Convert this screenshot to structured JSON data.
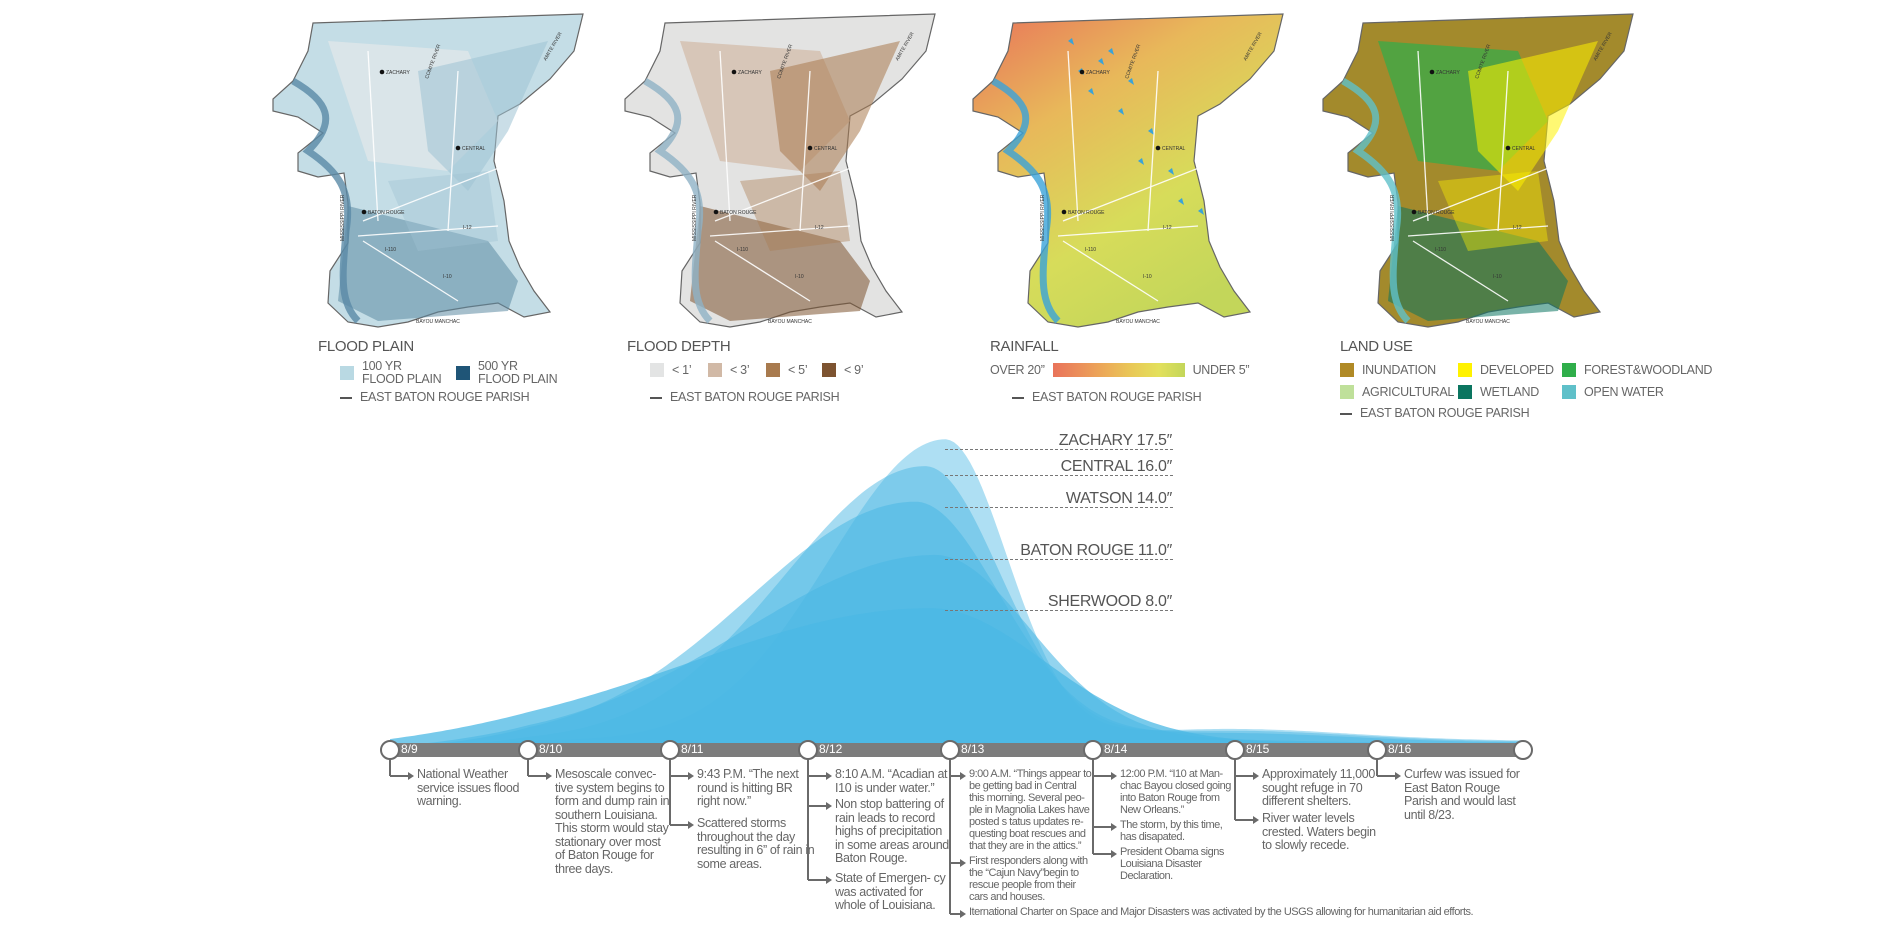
{
  "maps": [
    {
      "title": "FLOOD PLAIN",
      "legend": [
        {
          "label_line1": "100 YR",
          "label_line2": "FLOOD PLAIN",
          "color": "#b9d9e3"
        },
        {
          "label_line1": "500 YR",
          "label_line2": "FLOOD PLAIN",
          "color": "#1f5577"
        }
      ],
      "boundary_label": "EAST BATON ROUGE PARISH"
    },
    {
      "title": "FLOOD DEPTH",
      "legend": [
        {
          "label": "< 1’",
          "color": "#e3e4e4"
        },
        {
          "label": "< 3’",
          "color": "#d1b9a6"
        },
        {
          "label": "< 5’",
          "color": "#a87a4e"
        },
        {
          "label": "< 9’",
          "color": "#7d5330"
        }
      ],
      "boundary_label": "EAST BATON ROUGE PARISH"
    },
    {
      "title": "RAINFALL",
      "scale_high": "OVER 20”",
      "scale_low": "UNDER 5”",
      "scale_colors": [
        "#e9735a",
        "#eb8f5a",
        "#ecac58",
        "#e9c957",
        "#e3e05c",
        "#c3d65a"
      ],
      "boundary_label": "EAST BATON ROUGE PARISH"
    },
    {
      "title": "LAND USE",
      "legend": [
        {
          "label": "INUNDATION",
          "color": "#b08a26"
        },
        {
          "label": "DEVELOPED",
          "color": "#fff200"
        },
        {
          "label": "FOREST&WOODLAND",
          "color": "#2fae4a"
        },
        {
          "label": "AGRICULTURAL",
          "color": "#bfe09a"
        },
        {
          "label": "WETLAND",
          "color": "#0b7560"
        },
        {
          "label": "OPEN WATER",
          "color": "#5fc0c9"
        }
      ],
      "boundary_label": "EAST BATON ROUGE PARISH"
    }
  ],
  "map_labels": {
    "zachary": "ZACHARY",
    "central": "CENTRAL",
    "baton_rouge": "BATON ROUGE",
    "mississippi": "MISSISSIPPI RIVER",
    "comite": "COMITE RIVER",
    "amite": "AMITE RIVER",
    "i12": "I-12",
    "i10": "I-10",
    "i110": "I-110",
    "manchac": "BAYOU MANCHAC"
  },
  "chart_data": {
    "type": "area",
    "categories": [
      "8/9",
      "8/10",
      "8/11",
      "8/12",
      "8/13",
      "8/14",
      "8/15",
      "8/16"
    ],
    "unit": "inches",
    "series": [
      {
        "name": "ZACHARY",
        "label": "ZACHARY 17.5″",
        "peak": 17.5
      },
      {
        "name": "CENTRAL",
        "label": "CENTRAL 16.0″",
        "peak": 16.0
      },
      {
        "name": "WATSON",
        "label": "WATSON 14.0″",
        "peak": 14.0
      },
      {
        "name": "BATON ROUGE",
        "label": "BATON ROUGE 11.0″",
        "peak": 11.0
      },
      {
        "name": "SHERWOOD",
        "label": "SHERWOOD 8.0″",
        "peak": 8.0
      }
    ],
    "color": "#4bb8e4"
  },
  "timeline": [
    {
      "date": "8/9",
      "events": [
        "National Weather service issues flood warning."
      ]
    },
    {
      "date": "8/10",
      "events": [
        "Mesoscale convec- tive system begins to form and dump rain in southern Louisiana. This storm would stay stationary over most of  Baton Rouge for three days."
      ]
    },
    {
      "date": "8/11",
      "events": [
        "9:43 P.M.  “The next round is hitting BR right now.”",
        "Scattered storms throughout the day resulting in 6” of rain in some areas."
      ]
    },
    {
      "date": "8/12",
      "events": [
        "8:10 A.M. “Acadian at I10 is under water.”",
        "Non stop battering of rain leads to record highs of precipitation in some areas around Baton Rouge.",
        "State of Emergen- cy was activated for whole of Louisiana."
      ]
    },
    {
      "date": "8/13",
      "events": [
        "9:00 A.M. “Things appear to be getting bad in Central this morning. Several peo- ple in Magnolia Lakes have posted s tatus updates re- questing boat rescues and that they are in the attics.”",
        "First responders along with the “Cajun Navy”begin to rescue people from their cars and houses.",
        "Iternational Charter on Space and Major Disasters was activated by the USGS allowing for humanitarian aid efforts."
      ]
    },
    {
      "date": "8/14",
      "events": [
        "12:00 P.M. “I10 at Man- chac Bayou closed going into Baton Rouge from New Orleans.”",
        "The storm, by this time, has disapated.",
        "President Obama signs Louisiana Disaster Declaration."
      ]
    },
    {
      "date": "8/15",
      "events": [
        "Approximately 11,000 sought refuge in 70 different shelters.",
        "River water levels crested. Waters begin to slowly recede."
      ]
    },
    {
      "date": "8/16",
      "events": [
        "Curfew was issued for East Baton Rouge Parish and would last until 8/23."
      ]
    }
  ]
}
